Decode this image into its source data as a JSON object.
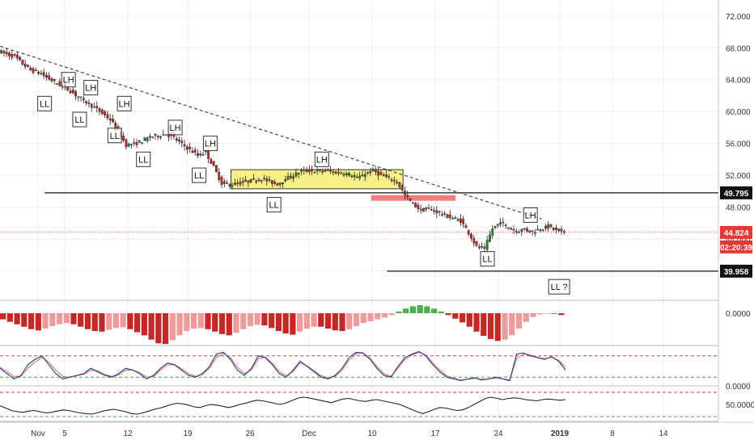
{
  "chart_data": {
    "type": "candlestick",
    "price_axis": {
      "ticks": [
        "72.000",
        "68.000",
        "64.000",
        "60.000",
        "56.000",
        "52.000",
        "48.000",
        "44.000",
        "40.000"
      ],
      "range": [
        36.5,
        73.5
      ]
    },
    "time_axis": {
      "ticks": [
        "Nov",
        "5",
        "12",
        "19",
        "26",
        "Dec",
        "10",
        "17",
        "24",
        "2019",
        "8",
        "14"
      ]
    },
    "price_series": [
      [
        0,
        67.6
      ],
      [
        5,
        67.2
      ],
      [
        10,
        66.9
      ],
      [
        15,
        66.0
      ],
      [
        20,
        65.2
      ],
      [
        25,
        64.9
      ],
      [
        30,
        64.3
      ],
      [
        35,
        63.7
      ],
      [
        40,
        63.2
      ],
      [
        45,
        62.6
      ],
      [
        50,
        61.8
      ],
      [
        55,
        61.2
      ],
      [
        60,
        60.5
      ],
      [
        65,
        59.8
      ],
      [
        70,
        59.0
      ],
      [
        75,
        57.5
      ],
      [
        80,
        55.8
      ],
      [
        85,
        55.9
      ],
      [
        90,
        56.3
      ],
      [
        95,
        56.8
      ],
      [
        100,
        57.0
      ],
      [
        105,
        57.2
      ],
      [
        110,
        56.7
      ],
      [
        115,
        55.9
      ],
      [
        120,
        55.2
      ],
      [
        125,
        54.5
      ],
      [
        130,
        54.9
      ],
      [
        135,
        53.0
      ],
      [
        140,
        51.0
      ],
      [
        145,
        50.8
      ],
      [
        150,
        51.0
      ],
      [
        155,
        51.2
      ],
      [
        160,
        51.4
      ],
      [
        165,
        51.6
      ],
      [
        170,
        51.2
      ],
      [
        175,
        50.9
      ],
      [
        180,
        51.5
      ],
      [
        185,
        52.0
      ],
      [
        190,
        52.5
      ],
      [
        195,
        52.6
      ],
      [
        200,
        52.5
      ],
      [
        205,
        52.6
      ],
      [
        210,
        52.4
      ],
      [
        215,
        52.3
      ],
      [
        220,
        52.1
      ],
      [
        225,
        51.6
      ],
      [
        230,
        52.2
      ],
      [
        235,
        52.6
      ],
      [
        240,
        52.0
      ],
      [
        245,
        51.6
      ],
      [
        250,
        51.2
      ],
      [
        255,
        49.5
      ],
      [
        260,
        48.4
      ],
      [
        265,
        47.6
      ],
      [
        270,
        47.8
      ],
      [
        275,
        47.4
      ],
      [
        280,
        47.0
      ],
      [
        285,
        46.6
      ],
      [
        290,
        46.3
      ],
      [
        295,
        44.8
      ],
      [
        300,
        43.0
      ],
      [
        305,
        42.8
      ],
      [
        310,
        45.3
      ],
      [
        315,
        46.1
      ],
      [
        320,
        45.4
      ],
      [
        325,
        45.0
      ],
      [
        330,
        45.2
      ],
      [
        335,
        44.9
      ],
      [
        340,
        45.3
      ],
      [
        345,
        45.6
      ],
      [
        350,
        45.1
      ],
      [
        355,
        44.82
      ]
    ],
    "trend_line": {
      "from": [
        0,
        68.2
      ],
      "to": [
        340,
        46.5
      ],
      "style": "dashed"
    },
    "consolidation_box": {
      "from_t": 145,
      "to_t": 253,
      "low": 50.3,
      "high": 52.7,
      "color": "#f5f07a"
    },
    "supply_zone": {
      "from_t": 233,
      "to_t": 286,
      "low": 48.8,
      "high": 49.5,
      "color": "#f47c7c"
    },
    "levels": [
      {
        "value": 49.795,
        "label": "49.795",
        "from_t": 28
      },
      {
        "value": 44.824,
        "label": "44.824",
        "style": "dotted",
        "color": "#e53935"
      },
      {
        "value": 39.958,
        "label": "39.958",
        "from_t": 243
      }
    ],
    "countdown": "02:20:39",
    "pivots": [
      {
        "t": 28,
        "price": 61.0,
        "label": "LL"
      },
      {
        "t": 43,
        "price": 64.0,
        "label": "LH"
      },
      {
        "t": 50,
        "price": 59.0,
        "label": "LL"
      },
      {
        "t": 57,
        "price": 63.0,
        "label": "LH"
      },
      {
        "t": 72,
        "price": 57.0,
        "label": "LL"
      },
      {
        "t": 78,
        "price": 61.0,
        "label": "LH"
      },
      {
        "t": 90,
        "price": 54.0,
        "label": "LL"
      },
      {
        "t": 110,
        "price": 58.0,
        "label": "LH"
      },
      {
        "t": 125,
        "price": 52.0,
        "label": "LL"
      },
      {
        "t": 132,
        "price": 56.0,
        "label": "LH"
      },
      {
        "t": 172,
        "price": 48.3,
        "label": "LL"
      },
      {
        "t": 202,
        "price": 54.0,
        "label": "LH"
      },
      {
        "t": 306,
        "price": 41.5,
        "label": "LL"
      },
      {
        "t": 333,
        "price": 47.0,
        "label": "LH"
      },
      {
        "t": 351,
        "price": 38.0,
        "label": "LL ?"
      }
    ],
    "macd_histogram": {
      "zero_label": "0.0000",
      "values": [
        -1.0,
        -1.4,
        -1.8,
        -2.2,
        -2.6,
        -2.8,
        -2.5,
        -2.1,
        -1.8,
        -1.6,
        -1.8,
        -2.2,
        -2.6,
        -2.9,
        -3.0,
        -2.7,
        -2.4,
        -2.3,
        -2.6,
        -3.1,
        -3.6,
        -4.3,
        -4.9,
        -5.0,
        -4.4,
        -3.6,
        -2.9,
        -2.5,
        -2.4,
        -2.6,
        -3.0,
        -3.4,
        -3.6,
        -3.2,
        -2.6,
        -2.1,
        -1.9,
        -2.0,
        -2.4,
        -2.9,
        -3.3,
        -3.5,
        -3.0,
        -2.5,
        -2.2,
        -2.2,
        -2.5,
        -2.8,
        -2.9,
        -2.6,
        -2.1,
        -1.6,
        -1.3,
        -1.0,
        -0.7,
        -0.3,
        0.3,
        0.8,
        1.2,
        1.4,
        1.2,
        0.8,
        0.3,
        -0.3,
        -0.9,
        -1.5,
        -2.2,
        -3.0,
        -3.7,
        -4.2,
        -4.5,
        -4.3,
        -3.6,
        -2.5,
        -1.4,
        -0.6,
        -0.2,
        -0.1,
        -0.1,
        -0.3
      ]
    },
    "stochastic": {
      "upper_level": 80,
      "lower_level": 20,
      "k": [
        45,
        30,
        15,
        25,
        55,
        70,
        80,
        55,
        30,
        15,
        20,
        25,
        30,
        45,
        35,
        25,
        20,
        30,
        45,
        40,
        30,
        15,
        25,
        45,
        60,
        55,
        40,
        25,
        20,
        30,
        50,
        85,
        90,
        70,
        40,
        25,
        45,
        80,
        75,
        55,
        30,
        20,
        40,
        65,
        50,
        35,
        20,
        15,
        25,
        45,
        75,
        90,
        88,
        70,
        45,
        25,
        20,
        50,
        75,
        85,
        92,
        80,
        55,
        35,
        20,
        15,
        10,
        15,
        18,
        12,
        15,
        20,
        15,
        10,
        85,
        88,
        80,
        75,
        70,
        78,
        65,
        40
      ],
      "d": [
        48,
        36,
        22,
        22,
        45,
        62,
        76,
        62,
        40,
        22,
        20,
        24,
        28,
        40,
        38,
        28,
        22,
        26,
        40,
        40,
        33,
        20,
        22,
        40,
        55,
        55,
        44,
        30,
        22,
        28,
        45,
        75,
        87,
        75,
        48,
        30,
        40,
        72,
        76,
        60,
        36,
        24,
        36,
        60,
        52,
        38,
        24,
        18,
        22,
        40,
        68,
        86,
        88,
        74,
        50,
        30,
        22,
        45,
        70,
        82,
        90,
        82,
        60,
        40,
        24,
        17,
        12,
        14,
        17,
        14,
        15,
        18,
        16,
        12,
        72,
        85,
        82,
        76,
        72,
        76,
        68,
        48
      ]
    },
    "rsi": {
      "level_label": "50.0000",
      "upper_level": 70,
      "lower_level": 30,
      "values": [
        48,
        44,
        40,
        38,
        37,
        39,
        40,
        38,
        36,
        37,
        39,
        41,
        40,
        38,
        36,
        35,
        34,
        36,
        39,
        41,
        42,
        40,
        38,
        35,
        34,
        36,
        39,
        42,
        44,
        47,
        50,
        52,
        51,
        49,
        46,
        45,
        48,
        50,
        49,
        47,
        45,
        47,
        50,
        52,
        55,
        57,
        56,
        54,
        52,
        50,
        52,
        56,
        60,
        62,
        61,
        59,
        57,
        55,
        53,
        56,
        59,
        60,
        58,
        56,
        55,
        57,
        58,
        56,
        54,
        52,
        50,
        46,
        42,
        38,
        35,
        38,
        42,
        45,
        44,
        42,
        40,
        41,
        45,
        50,
        55,
        60,
        62,
        60,
        58,
        60,
        61,
        60,
        58,
        57,
        56,
        58,
        59,
        58,
        57,
        58
      ]
    }
  }
}
